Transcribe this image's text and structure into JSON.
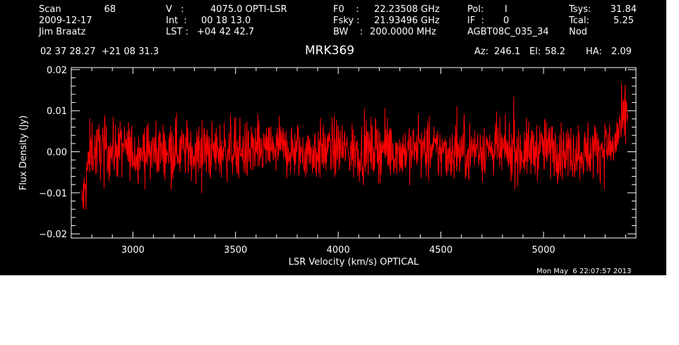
{
  "header": {
    "scan_label": "Scan",
    "scan_value": "68",
    "date": "2009-12-17",
    "observer": "Jim Braatz",
    "v_label": "V   :",
    "v_value": "4075.0 OPTI-LSR",
    "int_label": "Int  :",
    "int_value": "00 18 13.0",
    "lst_label": "LST :",
    "lst_value": "+04 42 42.7",
    "f0_label": "F0    :",
    "f0_value": "22.23508 GHz",
    "fsky_label": "Fsky :",
    "fsky_value": "21.93496 GHz",
    "bw_label": "BW    :",
    "bw_value": "200.0000 MHz",
    "pol_label": "Pol:",
    "pol_value": "I",
    "if_label": "IF  :",
    "if_value": "0",
    "project": "AGBT08C_035_34",
    "tsys_label": "Tsys:",
    "tsys_value": "31.84",
    "tcal_label": "Tcal:",
    "tcal_value": "5.25",
    "mode": "Nod",
    "coords": "02 37 28.27  +21 08 31.3",
    "az_label": "Az:",
    "az_value": "246.1",
    "el_label": "El:",
    "el_value": "58.2",
    "ha_label": "HA:",
    "ha_value": "2.09"
  },
  "timestamp": "Mon May  6 22:07:57 2013",
  "colors": {
    "background": "#000000",
    "axes": "#ffffff",
    "spectrum": "#ff0000"
  },
  "chart_data": {
    "type": "line",
    "title": "MRK369",
    "xlabel": "LSR Velocity (km/s) OPTICAL",
    "ylabel": "Flux Density (Jy)",
    "xlim": [
      2700,
      5450
    ],
    "ylim": [
      -0.021,
      0.0205
    ],
    "x_ticks": [
      3000,
      3500,
      4000,
      4500,
      5000
    ],
    "x_tick_labels": [
      "3000",
      "3500",
      "4000",
      "4500",
      "5000"
    ],
    "y_ticks": [
      -0.02,
      -0.01,
      0.0,
      0.01,
      0.02
    ],
    "y_tick_labels": [
      "−0.02",
      "−0.01",
      "0.00",
      "0.01",
      "0.02"
    ],
    "grid": false,
    "series": [
      {
        "x": [
          2750,
          2760,
          2770,
          2780,
          2790,
          2800,
          2820,
          2850,
          2900,
          2950,
          3000,
          3100,
          3200,
          3300,
          3400,
          3500,
          3550,
          3600,
          3620,
          3700,
          3800,
          3900,
          4000,
          4050,
          4100,
          4200,
          4300,
          4400,
          4420,
          4500,
          4600,
          4700,
          4800,
          4900,
          5000,
          5100,
          5200,
          5300,
          5340,
          5360,
          5380,
          5400,
          5410
        ],
        "y": [
          -0.013,
          -0.011,
          -0.009,
          -0.004,
          0.0,
          0.001,
          0.0,
          0.001,
          0.0,
          0.001,
          0.0,
          0.0,
          0.001,
          0.0,
          0.0,
          0.001,
          0.0,
          0.0,
          0.0,
          0.001,
          0.0,
          0.0,
          0.001,
          0.0,
          0.0,
          0.001,
          0.0,
          0.001,
          0.0,
          0.0,
          0.0,
          0.001,
          0.0,
          0.0,
          0.001,
          0.0,
          0.0,
          0.001,
          0.001,
          0.004,
          0.006,
          0.008,
          0.009
        ],
        "noise_rms": 0.0035
      }
    ]
  }
}
